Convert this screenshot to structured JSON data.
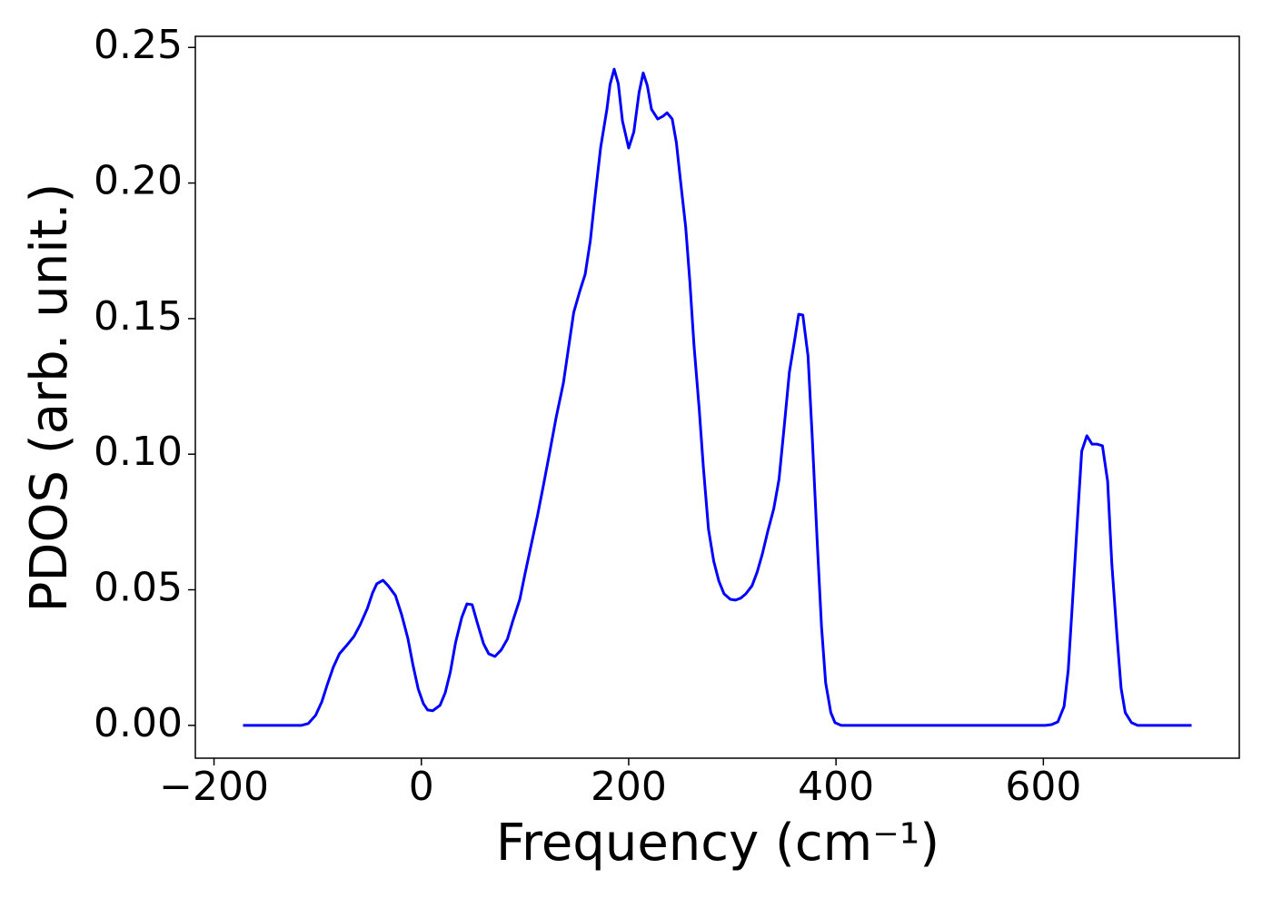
{
  "chart_data": {
    "type": "line",
    "x_label": "Frequency (cm⁻¹)",
    "y_label": "PDOS (arb. unit.)",
    "x": [
      -172,
      -115.5,
      -109,
      -102,
      -96,
      -91,
      -85,
      -79,
      -72,
      -65,
      -59,
      -52,
      -47,
      -43,
      -37,
      -32,
      -25,
      -19,
      -13,
      -8,
      -3,
      2,
      6,
      11,
      18,
      23,
      28,
      33,
      39,
      44,
      49,
      54,
      60,
      65,
      71,
      77,
      83,
      88,
      95,
      100,
      106,
      112,
      118,
      124,
      130,
      137,
      143,
      147,
      153,
      158,
      163,
      168,
      173,
      179,
      182,
      186,
      190,
      194,
      200,
      205,
      210,
      214,
      218,
      222,
      228,
      233,
      237,
      242,
      246,
      250,
      255,
      259,
      263,
      268,
      272,
      277,
      282,
      287,
      292,
      298,
      303,
      308,
      313,
      319,
      324,
      329,
      334,
      340,
      345,
      350,
      355,
      360,
      364,
      368,
      373,
      377,
      382,
      386,
      390,
      395,
      399,
      405,
      602,
      608,
      614,
      620,
      624,
      628,
      633,
      637,
      642,
      647,
      652,
      657,
      662,
      666,
      671,
      675,
      679,
      685,
      691,
      743
    ],
    "series": [
      {
        "color": "#0000ff",
        "values": [
          0,
          0,
          0.0007,
          0.0037,
          0.0087,
          0.0147,
          0.0214,
          0.0264,
          0.0295,
          0.0328,
          0.0371,
          0.0432,
          0.0489,
          0.0522,
          0.0535,
          0.0515,
          0.0479,
          0.0408,
          0.0321,
          0.0221,
          0.0134,
          0.008,
          0.0057,
          0.0054,
          0.0074,
          0.012,
          0.0197,
          0.0305,
          0.0398,
          0.0448,
          0.0445,
          0.0378,
          0.0301,
          0.0264,
          0.0254,
          0.0278,
          0.0318,
          0.0382,
          0.0465,
          0.0559,
          0.0666,
          0.0773,
          0.089,
          0.1011,
          0.1135,
          0.1262,
          0.1419,
          0.1523,
          0.1603,
          0.1663,
          0.1787,
          0.1965,
          0.2132,
          0.2272,
          0.2363,
          0.242,
          0.2366,
          0.2229,
          0.2129,
          0.2189,
          0.2333,
          0.2406,
          0.2359,
          0.2272,
          0.2236,
          0.2246,
          0.2259,
          0.2236,
          0.2149,
          0.2008,
          0.1837,
          0.1637,
          0.1402,
          0.1168,
          0.0954,
          0.0723,
          0.0606,
          0.0532,
          0.0485,
          0.0465,
          0.0462,
          0.0469,
          0.0485,
          0.0515,
          0.0566,
          0.0633,
          0.0713,
          0.08,
          0.0907,
          0.1101,
          0.1302,
          0.1419,
          0.1516,
          0.1513,
          0.1362,
          0.1068,
          0.0666,
          0.0365,
          0.0157,
          0.0047,
          0.001,
          0,
          0,
          0.0003,
          0.0013,
          0.007,
          0.0204,
          0.0448,
          0.0766,
          0.1011,
          0.1068,
          0.1037,
          0.1037,
          0.1031,
          0.09,
          0.0599,
          0.0331,
          0.0137,
          0.0047,
          0.001,
          0,
          0
        ]
      }
    ],
    "xlim": [
      -218,
      789
    ],
    "ylim": [
      -0.0121,
      0.2541
    ],
    "xticks": [
      {
        "value": -200,
        "label": "−200"
      },
      0,
      200,
      400,
      600
    ],
    "yticks": [
      {
        "value": 0,
        "label": "0.00"
      },
      {
        "value": 0.05,
        "label": "0.05"
      },
      {
        "value": 0.1,
        "label": "0.10"
      },
      {
        "value": 0.15,
        "label": "0.15"
      },
      {
        "value": 0.2,
        "label": "0.20"
      },
      {
        "value": 0.25,
        "label": "0.25"
      }
    ]
  }
}
